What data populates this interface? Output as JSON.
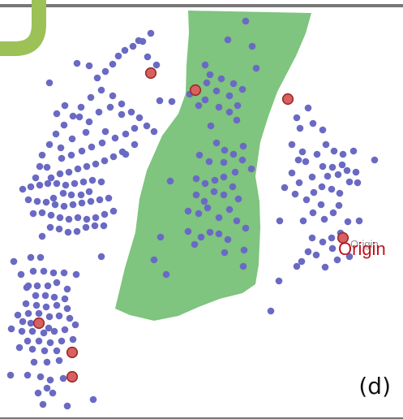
{
  "panel": {
    "label": "(d)"
  },
  "annotation": {
    "origin_label": "Origin",
    "origin_ghost_label": "Origin"
  },
  "colors": {
    "background": "#ffffff",
    "region": "#7fc47f",
    "point": "#6a6ac4",
    "highlight_fill": "#d96060",
    "highlight_stroke": "#9a2a2a",
    "frame": "#777777",
    "corner_accent": "#9cc157",
    "origin_text": "#c0111b"
  }
}
